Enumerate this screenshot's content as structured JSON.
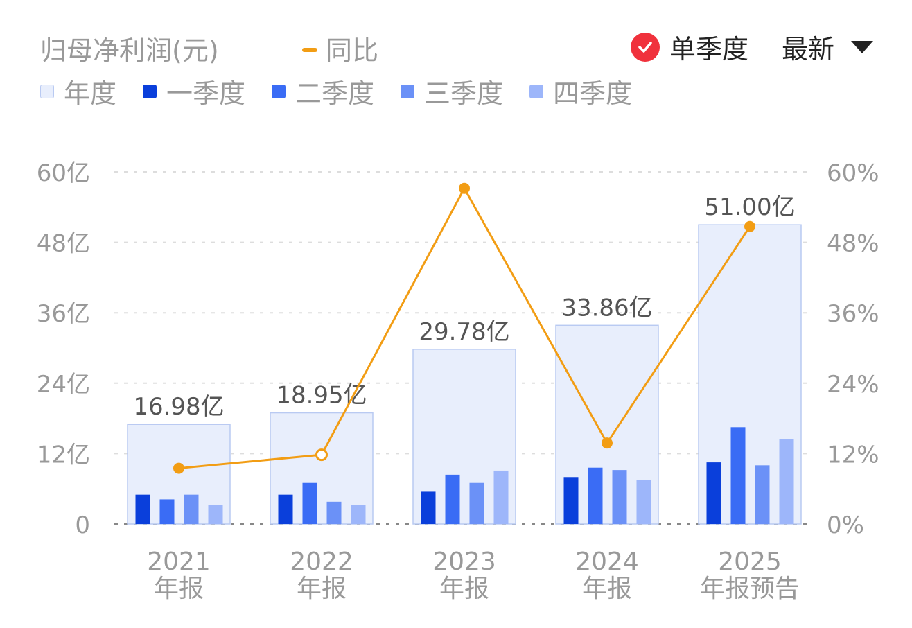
{
  "header": {
    "title": "归母净利润(元)",
    "yoy_label": "同比",
    "single_quarter_label": "单季度",
    "latest_label": "最新"
  },
  "legend": [
    {
      "label": "年度",
      "color": "#E8EEFC"
    },
    {
      "label": "一季度",
      "color": "#0A3FDB"
    },
    {
      "label": "二季度",
      "color": "#3A6CF5"
    },
    {
      "label": "三季度",
      "color": "#6B91F7"
    },
    {
      "label": "四季度",
      "color": "#9DB6FA"
    }
  ],
  "colors": {
    "accent_orange": "#F29D14",
    "check_red": "#F0313C",
    "annual_fill": "#E8EEFC",
    "annual_border": "#B9CAF2",
    "grid": "#DDDDDD",
    "axis_text": "#999999",
    "value_text": "#555555"
  },
  "chart_data": {
    "type": "bar",
    "categories": [
      {
        "line1": "2021",
        "line2": "年报"
      },
      {
        "line1": "2022",
        "line2": "年报"
      },
      {
        "line1": "2023",
        "line2": "年报"
      },
      {
        "line1": "2024",
        "line2": "年报"
      },
      {
        "line1": "2025",
        "line2": "年报预告"
      }
    ],
    "annual": [
      16.98,
      18.95,
      29.78,
      33.86,
      51.0
    ],
    "annual_labels": [
      "16.98亿",
      "18.95亿",
      "29.78亿",
      "33.86亿",
      "51.00亿"
    ],
    "quarters": [
      {
        "name": "一季度",
        "values": [
          5.0,
          5.0,
          5.5,
          8.0,
          10.5
        ]
      },
      {
        "name": "二季度",
        "values": [
          4.2,
          7.0,
          8.4,
          9.6,
          16.5
        ]
      },
      {
        "name": "三季度",
        "values": [
          5.0,
          3.8,
          7.0,
          9.2,
          10.0
        ]
      },
      {
        "name": "四季度",
        "values": [
          3.3,
          3.3,
          9.1,
          7.5,
          14.5
        ]
      }
    ],
    "yoy": {
      "name": "同比",
      "values": [
        9.5,
        11.8,
        57.2,
        13.8,
        50.7
      ],
      "hollow": [
        false,
        true,
        false,
        false,
        false
      ]
    },
    "y_left": {
      "min": 0,
      "max": 60,
      "ticks": [
        "0",
        "12亿",
        "24亿",
        "36亿",
        "48亿",
        "60亿"
      ]
    },
    "y_right": {
      "min": 0,
      "max": 60,
      "ticks": [
        "0%",
        "12%",
        "24%",
        "36%",
        "48%",
        "60%"
      ]
    },
    "grid": true,
    "legend_position": "top-left"
  }
}
